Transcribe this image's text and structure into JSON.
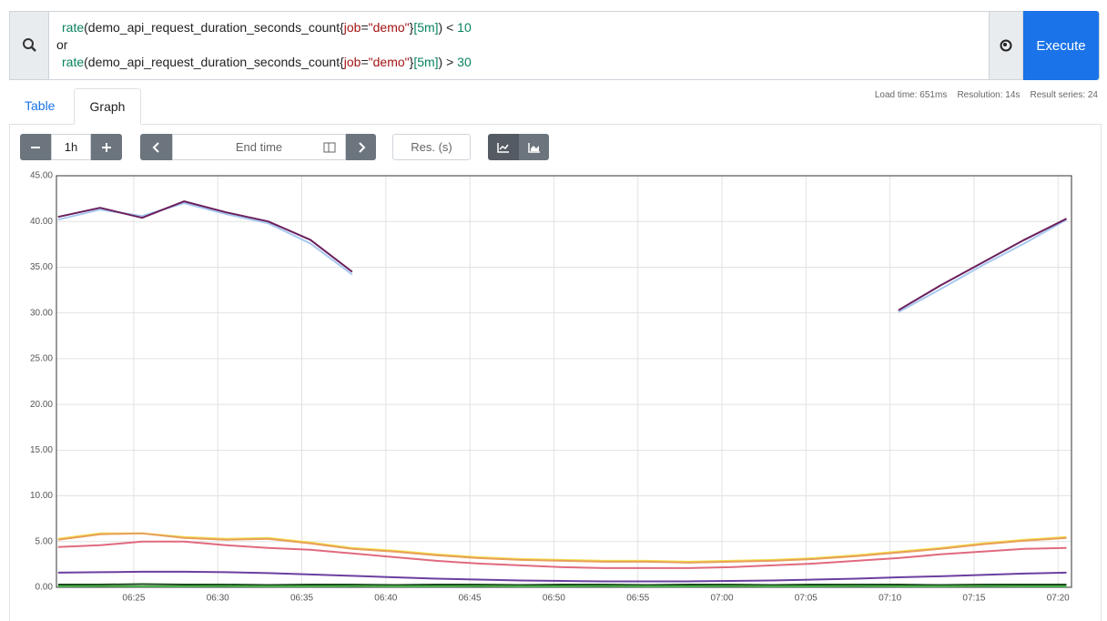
{
  "query": {
    "lines": [
      [
        {
          "text": "rate",
          "color": "#09835f"
        },
        {
          "text": "(demo_api_request_duration_seconds_count{",
          "color": "#222222"
        },
        {
          "text": "job",
          "color": "#a31515"
        },
        {
          "text": "=",
          "color": "#222222"
        },
        {
          "text": "\"demo\"",
          "color": "#a31515"
        },
        {
          "text": "}",
          "color": "#222222"
        },
        {
          "text": "[5m]",
          "color": "#09835f"
        },
        {
          "text": ") < ",
          "color": "#222222"
        },
        {
          "text": "10",
          "color": "#09835f"
        }
      ],
      [
        {
          "text": "or",
          "color": "#222222"
        }
      ],
      [
        {
          "text": "rate",
          "color": "#09835f"
        },
        {
          "text": "(demo_api_request_duration_seconds_count{",
          "color": "#222222"
        },
        {
          "text": "job",
          "color": "#a31515"
        },
        {
          "text": "=",
          "color": "#222222"
        },
        {
          "text": "\"demo\"",
          "color": "#a31515"
        },
        {
          "text": "}",
          "color": "#222222"
        },
        {
          "text": "[5m]",
          "color": "#09835f"
        },
        {
          "text": ") > ",
          "color": "#222222"
        },
        {
          "text": "30",
          "color": "#09835f"
        }
      ]
    ]
  },
  "execute": "Execute",
  "tabs": [
    "Table",
    "Graph"
  ],
  "stats": [
    "Load time: 651ms",
    "Resolution: 14s",
    "Result series: 24"
  ],
  "controls": {
    "range": "1h",
    "end_time": "End time",
    "resolution": "Res. (s)"
  },
  "chart_data": {
    "type": "line",
    "grid": true,
    "xlim": [
      380.4,
      440.8
    ],
    "xticks": [
      {
        "value": 385,
        "label": "06:25"
      },
      {
        "value": 390,
        "label": "06:30"
      },
      {
        "value": 395,
        "label": "06:35"
      },
      {
        "value": 400,
        "label": "06:40"
      },
      {
        "value": 405,
        "label": "06:45"
      },
      {
        "value": 410,
        "label": "06:50"
      },
      {
        "value": 415,
        "label": "06:55"
      },
      {
        "value": 420,
        "label": "07:00"
      },
      {
        "value": 425,
        "label": "07:05"
      },
      {
        "value": 430,
        "label": "07:10"
      },
      {
        "value": 435,
        "label": "07:15"
      },
      {
        "value": 440,
        "label": "07:20"
      }
    ],
    "ylim": [
      0,
      45
    ],
    "yticks": [
      {
        "value": 0,
        "label": "0.00"
      },
      {
        "value": 5,
        "label": "5.00"
      },
      {
        "value": 10,
        "label": "10.00"
      },
      {
        "value": 15,
        "label": "15.00"
      },
      {
        "value": 20,
        "label": "20.00"
      },
      {
        "value": 25,
        "label": "25.00"
      },
      {
        "value": 30,
        "label": "30.00"
      },
      {
        "value": 35,
        "label": "35.00"
      },
      {
        "value": 40,
        "label": "40.00"
      },
      {
        "value": 45,
        "label": "45.00"
      }
    ],
    "x": [
      380.5,
      383,
      385.5,
      388,
      390.5,
      393,
      395.5,
      398,
      400.5,
      403,
      405.5,
      408,
      410.5,
      413,
      415.5,
      418,
      420.5,
      423,
      425.5,
      428,
      430.5,
      433,
      435.5,
      438,
      440.5
    ],
    "series": [
      {
        "color": "#a8c8f0",
        "values": [
          40.2,
          41.3,
          40.6,
          42.0,
          40.8,
          39.8,
          37.6,
          34.2,
          null,
          null,
          null,
          null,
          null,
          null,
          null,
          null,
          null,
          null,
          null,
          null,
          30.1,
          32.6,
          35.2,
          37.6,
          40.2
        ]
      },
      {
        "color": "#6a1f5c",
        "values": [
          40.5,
          41.5,
          40.4,
          42.2,
          41.0,
          40.0,
          38.0,
          34.5,
          null,
          null,
          null,
          null,
          null,
          null,
          null,
          null,
          null,
          null,
          null,
          null,
          30.3,
          33.0,
          35.5,
          38.0,
          40.3
        ]
      },
      {
        "color": "#f4e04d",
        "values": [
          5.3,
          5.9,
          5.9,
          5.5,
          5.3,
          5.4,
          4.9,
          4.3,
          4.0,
          3.6,
          3.3,
          3.1,
          3.0,
          2.9,
          2.9,
          2.8,
          2.9,
          3.0,
          3.2,
          3.5,
          3.9,
          4.3,
          4.8,
          5.2,
          5.5
        ]
      },
      {
        "color": "#e8a05a",
        "values": [
          5.2,
          5.8,
          5.9,
          5.4,
          5.2,
          5.3,
          4.8,
          4.2,
          3.9,
          3.5,
          3.2,
          3.0,
          2.9,
          2.8,
          2.8,
          2.7,
          2.8,
          2.9,
          3.1,
          3.4,
          3.8,
          4.2,
          4.7,
          5.1,
          5.4
        ]
      },
      {
        "color": "#e06a7e",
        "values": [
          4.4,
          4.6,
          5.0,
          5.0,
          4.6,
          4.3,
          4.1,
          3.7,
          3.3,
          2.9,
          2.6,
          2.4,
          2.2,
          2.1,
          2.1,
          2.1,
          2.2,
          2.4,
          2.6,
          2.9,
          3.2,
          3.6,
          3.9,
          4.2,
          4.3
        ]
      },
      {
        "color": "#6b3fa0",
        "values": [
          1.6,
          1.65,
          1.7,
          1.7,
          1.65,
          1.55,
          1.4,
          1.25,
          1.1,
          0.95,
          0.85,
          0.75,
          0.7,
          0.65,
          0.65,
          0.65,
          0.7,
          0.75,
          0.85,
          0.95,
          1.1,
          1.2,
          1.35,
          1.5,
          1.6
        ]
      },
      {
        "color": "#1d4d1d",
        "values": [
          0.3,
          0.3,
          0.35,
          0.3,
          0.3,
          0.25,
          0.3,
          0.3,
          0.25,
          0.3,
          0.3,
          0.25,
          0.3,
          0.3,
          0.25,
          0.3,
          0.3,
          0.25,
          0.3,
          0.3,
          0.3,
          0.25,
          0.3,
          0.3,
          0.3
        ]
      },
      {
        "color": "#4caf50",
        "values": [
          0.1,
          0.12,
          0.1,
          0.1,
          0.12,
          0.1,
          0.1,
          0.12,
          0.1,
          0.1,
          0.12,
          0.1,
          0.1,
          0.12,
          0.1,
          0.1,
          0.12,
          0.1,
          0.1,
          0.12,
          0.1,
          0.1,
          0.12,
          0.1,
          0.1
        ]
      }
    ]
  }
}
